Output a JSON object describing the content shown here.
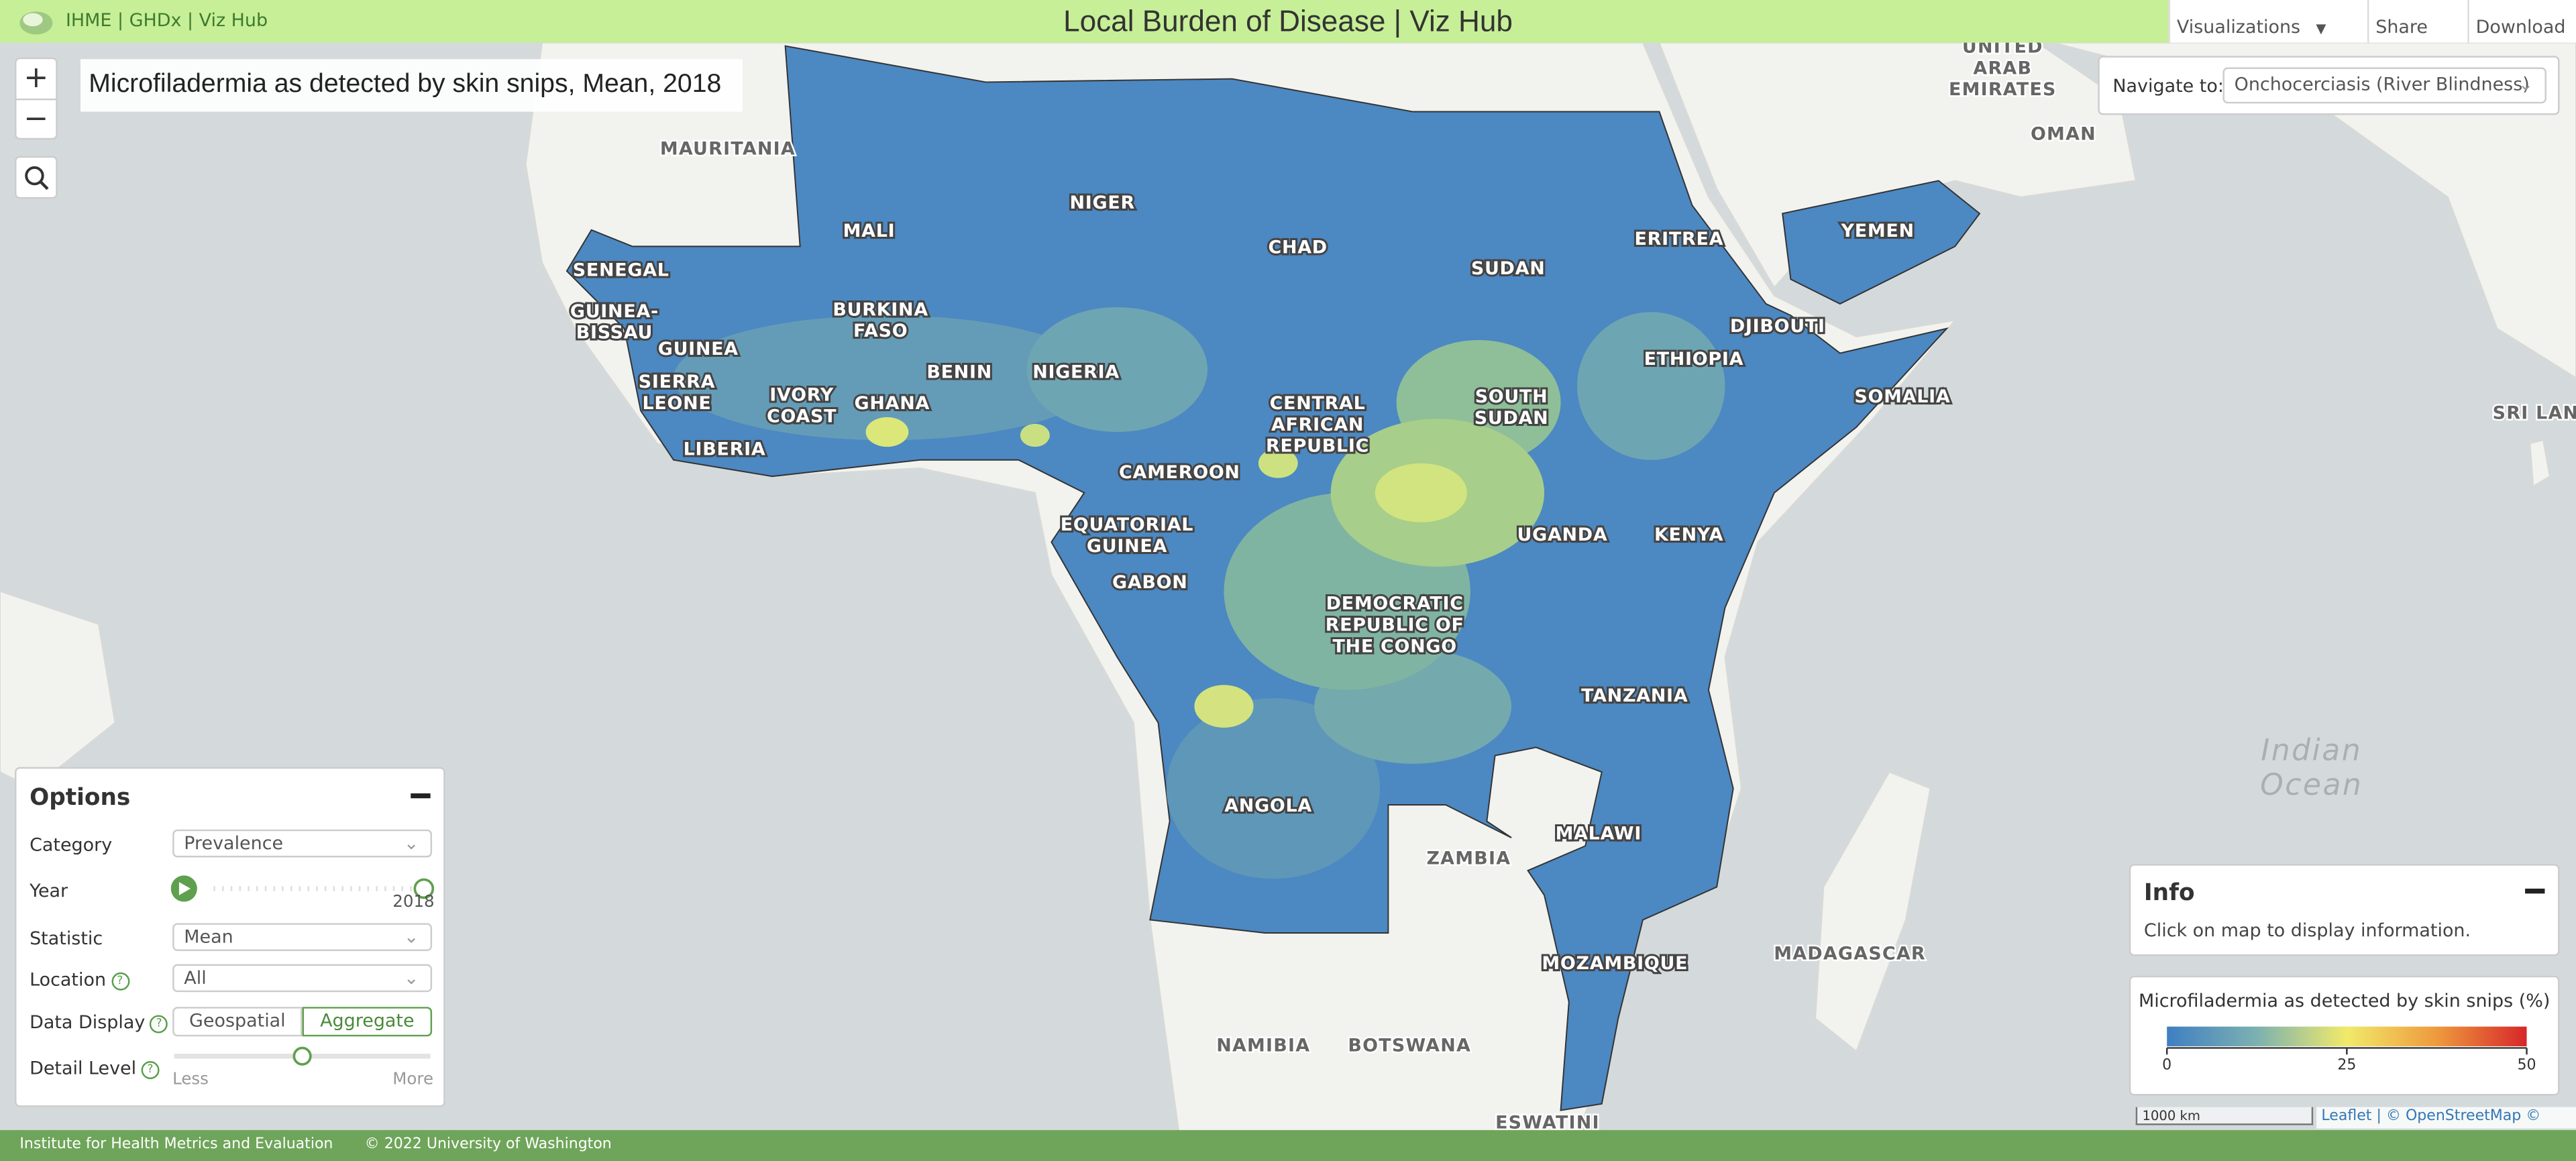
{
  "header": {
    "brand": "IHME | GHDx | Viz Hub",
    "title": "Local Burden of Disease | Viz Hub",
    "menu": [
      "Visualizations",
      "Share",
      "Download"
    ]
  },
  "map": {
    "title": "Microfiladermia as detected by skin snips, Mean, 2018",
    "controls": {
      "zoom_in": "+",
      "zoom_out": "−"
    },
    "labels": [
      {
        "lines": [
          "MAURITANIA"
        ]
      },
      {
        "lines": [
          "SENEGAL"
        ]
      },
      {
        "lines": [
          "GUINEA-",
          "BISSAU"
        ]
      },
      {
        "lines": [
          "GUINEA"
        ]
      },
      {
        "lines": [
          "SIERRA",
          "LEONE"
        ]
      },
      {
        "lines": [
          "LIBERIA"
        ]
      },
      {
        "lines": [
          "IVORY",
          "COAST"
        ]
      },
      {
        "lines": [
          "GHANA"
        ]
      },
      {
        "lines": [
          "BURKINA",
          "FASO"
        ]
      },
      {
        "lines": [
          "MALI"
        ]
      },
      {
        "lines": [
          "NIGER"
        ]
      },
      {
        "lines": [
          "BENIN"
        ]
      },
      {
        "lines": [
          "NIGERIA"
        ]
      },
      {
        "lines": [
          "CHAD"
        ]
      },
      {
        "lines": [
          "CAMEROON"
        ]
      },
      {
        "lines": [
          "EQUATORIAL",
          "GUINEA"
        ]
      },
      {
        "lines": [
          "GABON"
        ]
      },
      {
        "lines": [
          "CENTRAL",
          "AFRICAN",
          "REPUBLIC"
        ]
      },
      {
        "lines": [
          "SUDAN"
        ]
      },
      {
        "lines": [
          "SOUTH",
          "SUDAN"
        ]
      },
      {
        "lines": [
          "ERITREA"
        ]
      },
      {
        "lines": [
          "DJIBOUTI"
        ]
      },
      {
        "lines": [
          "ETHIOPIA"
        ]
      },
      {
        "lines": [
          "YEMEN"
        ]
      },
      {
        "lines": [
          "SOMALIA"
        ]
      },
      {
        "lines": [
          "UGANDA"
        ]
      },
      {
        "lines": [
          "KENYA"
        ]
      },
      {
        "lines": [
          "DEMOCRATIC",
          "REPUBLIC OF",
          "THE CONGO"
        ]
      },
      {
        "lines": [
          "TANZANIA"
        ]
      },
      {
        "lines": [
          "ANGOLA"
        ]
      },
      {
        "lines": [
          "ZAMBIA"
        ]
      },
      {
        "lines": [
          "MALAWI"
        ]
      },
      {
        "lines": [
          "MOZAMBIQUE"
        ]
      },
      {
        "lines": [
          "MADAGASCAR"
        ]
      },
      {
        "lines": [
          "NAMIBIA"
        ]
      },
      {
        "lines": [
          "BOTSWANA"
        ]
      },
      {
        "lines": [
          "ESWATINI"
        ]
      },
      {
        "lines": [
          "UNITED",
          "ARAB",
          "EMIRATES"
        ]
      },
      {
        "lines": [
          "OMAN"
        ]
      },
      {
        "lines": [
          "SRI LANK"
        ]
      },
      {
        "lines": [
          "Indian",
          "Ocean"
        ]
      }
    ],
    "scale": "1000 km",
    "attribution": "Leaflet | © OpenStreetMap © CARTO"
  },
  "navigate": {
    "label": "Navigate to:",
    "value": "Onchocerciasis (River Blindness)"
  },
  "options": {
    "title": "Options",
    "help_icon": "?",
    "category": {
      "label": "Category",
      "value": "Prevalence"
    },
    "year": {
      "label": "Year",
      "value": "2018"
    },
    "statistic": {
      "label": "Statistic",
      "value": "Mean"
    },
    "location": {
      "label": "Location",
      "value": "All"
    },
    "data_display": {
      "label": "Data Display",
      "options": [
        "Geospatial",
        "Aggregate"
      ]
    },
    "detail_level": {
      "label": "Detail Level",
      "min": "Less",
      "max": "More"
    }
  },
  "info": {
    "title": "Info",
    "text": "Click on map to display information."
  },
  "legend": {
    "title": "Microfiladermia as detected by skin snips (%)",
    "ticks": [
      0,
      25,
      50
    ]
  },
  "footer": {
    "org": "Institute for Health Metrics and Evaluation",
    "copyright": "© 2022 University of Washington"
  }
}
